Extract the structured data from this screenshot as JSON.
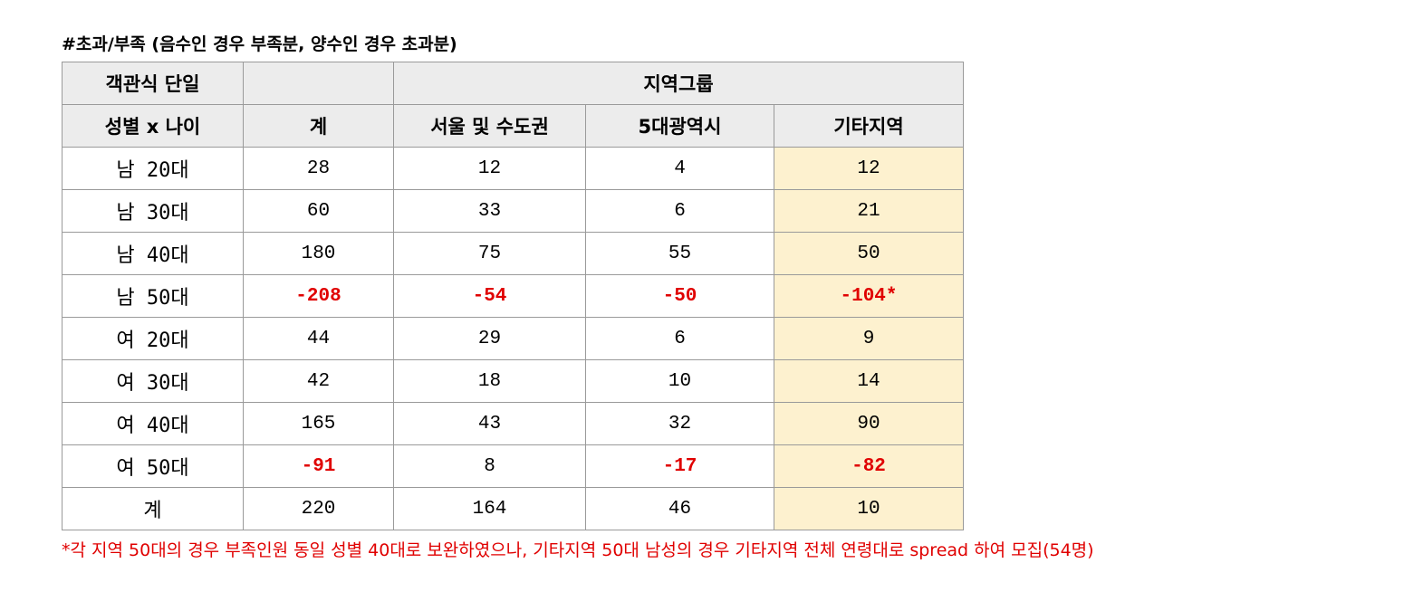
{
  "title": "#초과/부족 (음수인 경우 부족분, 양수인 경우 초과분)",
  "header": {
    "row1": {
      "col1": "객관식 단일",
      "col2": "",
      "group": "지역그룹"
    },
    "row2": {
      "col1": "성별 x 나이",
      "total": "계",
      "seoul": "서울 및 수도권",
      "metro": "5대광역시",
      "other": "기타지역"
    }
  },
  "rows": [
    {
      "label": "남 20대",
      "total": "28",
      "seoul": "12",
      "metro": "4",
      "other": "12"
    },
    {
      "label": "남 30대",
      "total": "60",
      "seoul": "33",
      "metro": "6",
      "other": "21"
    },
    {
      "label": "남 40대",
      "total": "180",
      "seoul": "75",
      "metro": "55",
      "other": "50"
    },
    {
      "label": "남 50대",
      "total": "-208",
      "seoul": "-54",
      "metro": "-50",
      "other": "-104*"
    },
    {
      "label": "여 20대",
      "total": "44",
      "seoul": "29",
      "metro": "6",
      "other": "9"
    },
    {
      "label": "여 30대",
      "total": "42",
      "seoul": "18",
      "metro": "10",
      "other": "14"
    },
    {
      "label": "여 40대",
      "total": "165",
      "seoul": "43",
      "metro": "32",
      "other": "90"
    },
    {
      "label": "여 50대",
      "total": "-91",
      "seoul": "8",
      "metro": "-17",
      "other": "-82"
    },
    {
      "label": "계",
      "total": "220",
      "seoul": "164",
      "metro": "46",
      "other": "10"
    }
  ],
  "footnote": "*각 지역 50대의 경우 부족인원 동일 성별 40대로 보완하였으나, 기타지역 50대 남성의 경우 기타지역 전체 연령대로 spread 하여 모집(54명)",
  "colors": {
    "negative": "#e00000",
    "header_bg": "#ececec",
    "highlight_bg": "#fdf1cf",
    "border": "#9a9a9a"
  }
}
